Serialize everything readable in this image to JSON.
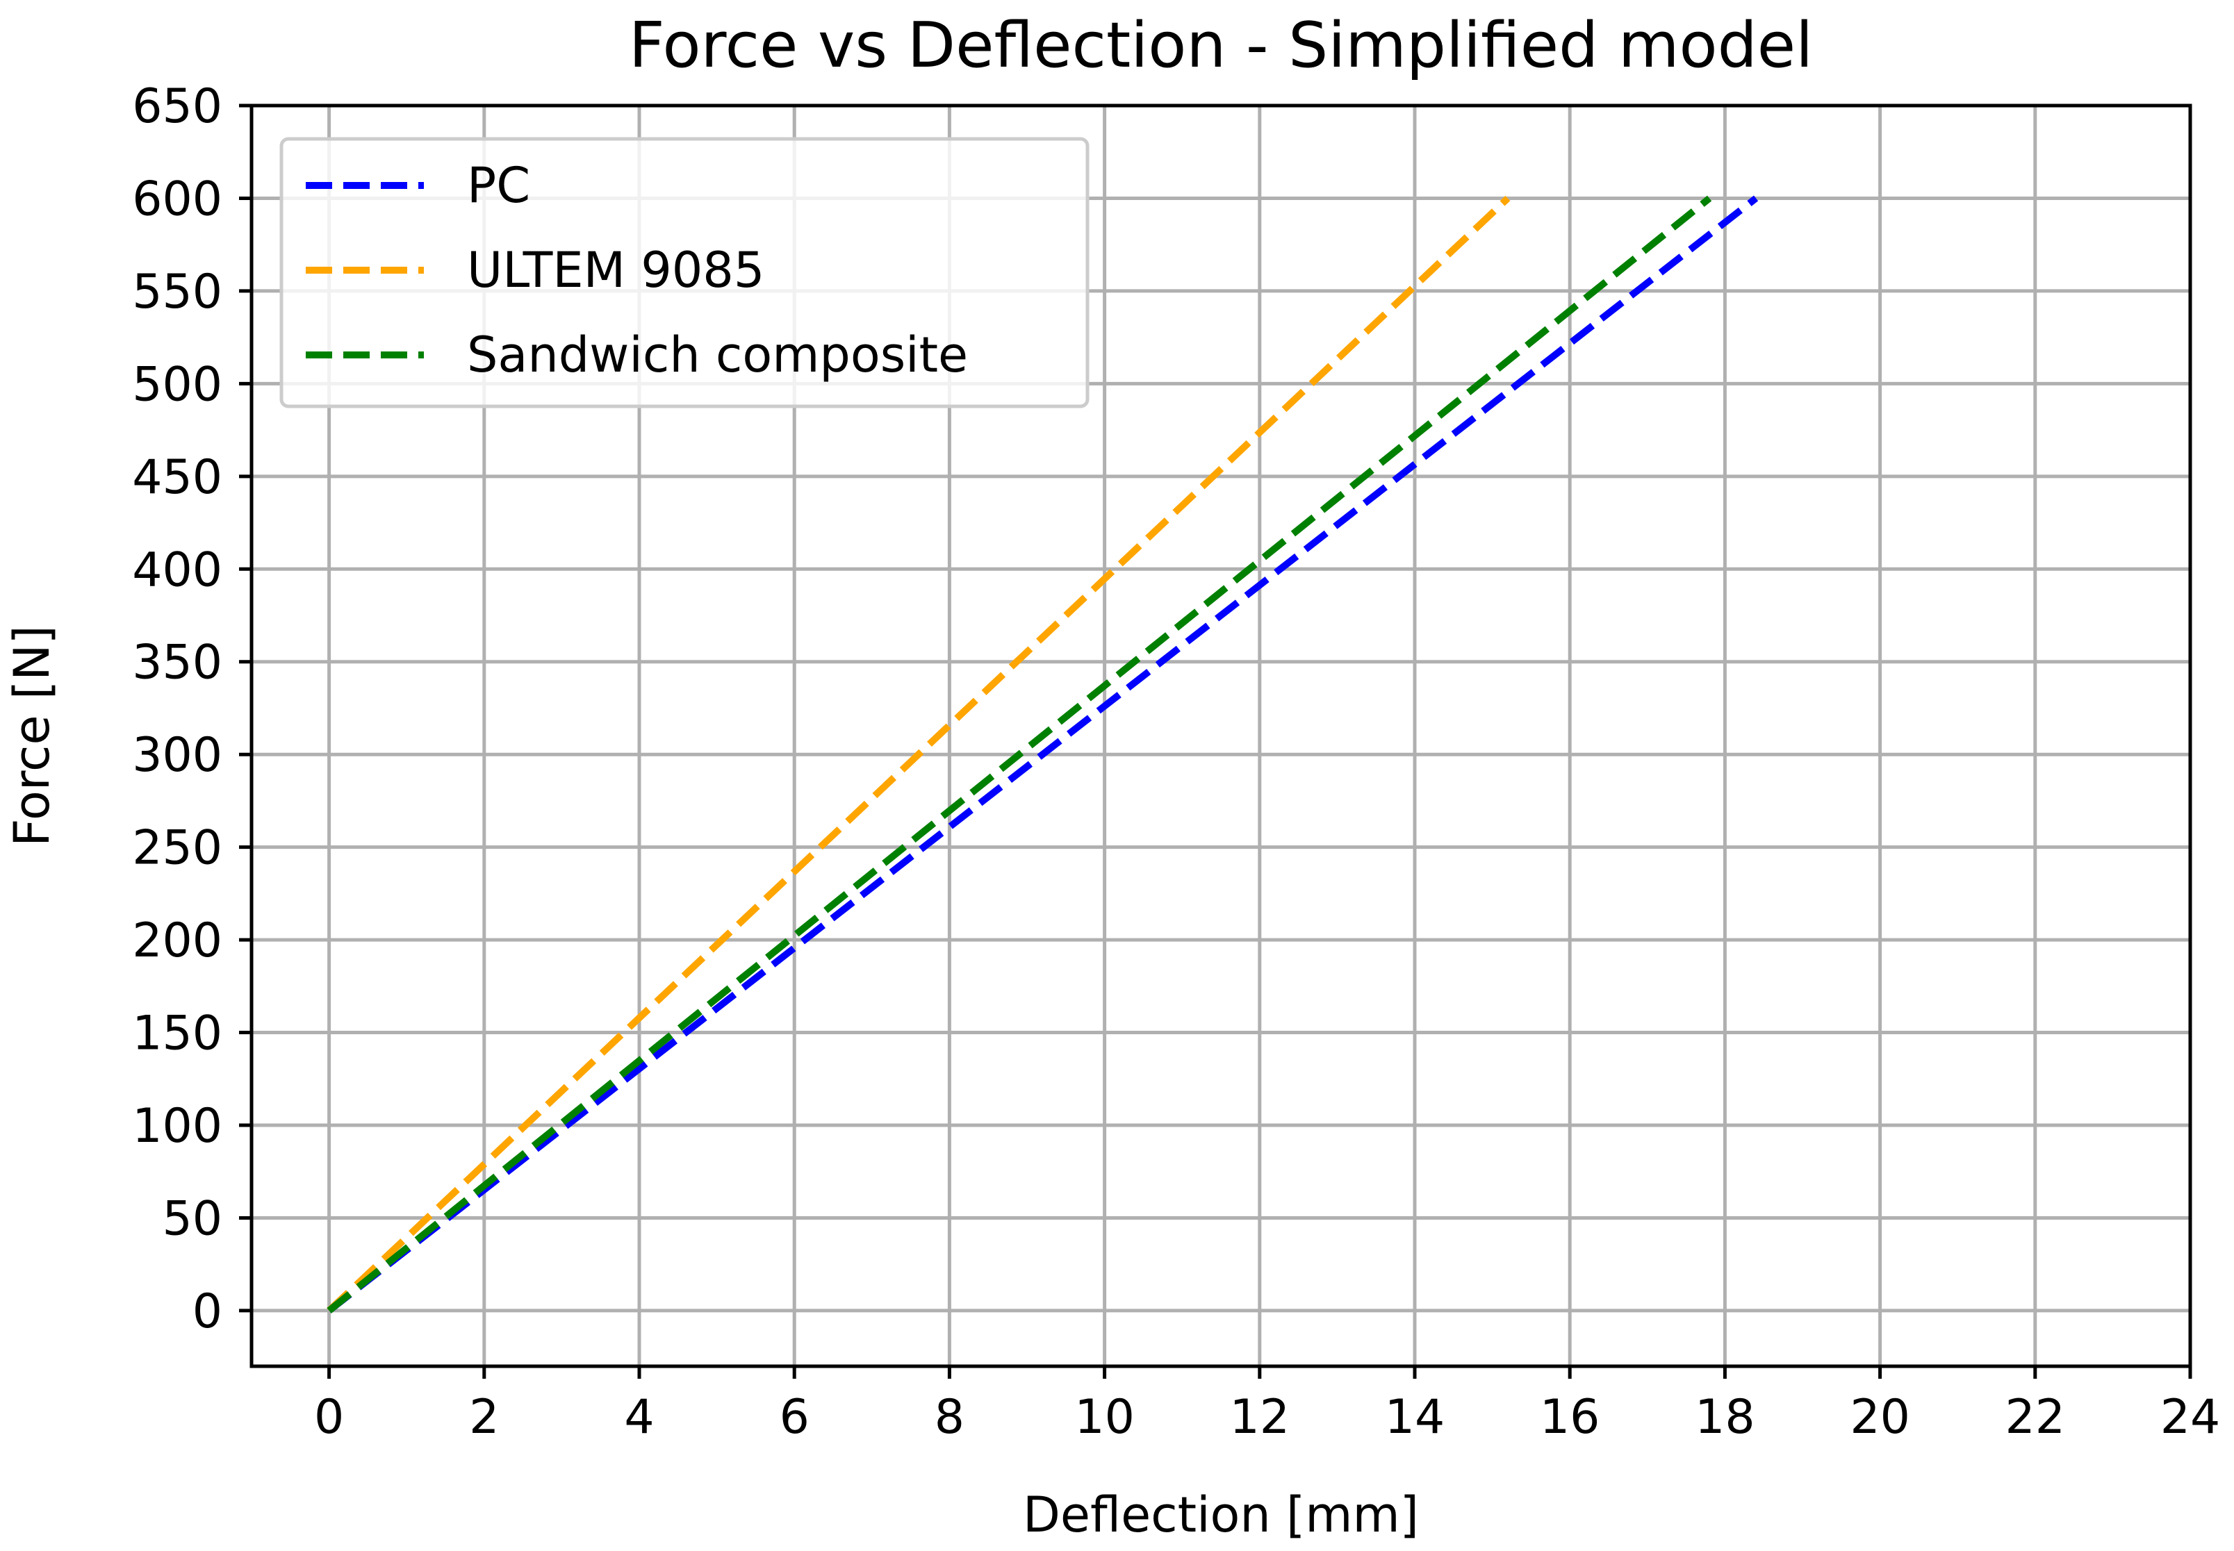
{
  "chart_data": {
    "type": "line",
    "title": "Force vs Deflection - Simplified model",
    "xlabel": "Deflection [mm]",
    "ylabel": "Force [N]",
    "xlim": [
      -1,
      24
    ],
    "ylim": [
      -30,
      650
    ],
    "xticks": [
      0,
      2,
      4,
      6,
      8,
      10,
      12,
      14,
      16,
      18,
      20,
      22,
      24
    ],
    "yticks": [
      0,
      50,
      100,
      150,
      200,
      250,
      300,
      350,
      400,
      450,
      500,
      550,
      600,
      650
    ],
    "grid": true,
    "legend_position": "top-left",
    "series": [
      {
        "name": "PC",
        "color": "#0000ff",
        "linestyle": "dashed",
        "x": [
          0,
          18.4
        ],
        "y": [
          0,
          600
        ]
      },
      {
        "name": "ULTEM 9085",
        "color": "#ffa500",
        "linestyle": "dashed",
        "x": [
          0,
          15.2
        ],
        "y": [
          0,
          600
        ]
      },
      {
        "name": "Sandwich composite",
        "color": "#008000",
        "linestyle": "dashed",
        "x": [
          0,
          17.8
        ],
        "y": [
          0,
          600
        ]
      }
    ]
  }
}
